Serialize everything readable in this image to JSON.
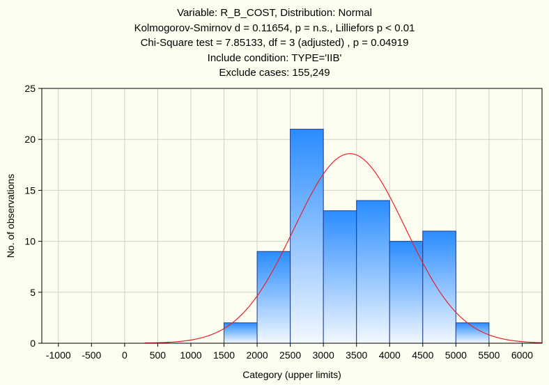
{
  "chart_data": {
    "type": "bar",
    "title_lines": [
      "Variable: R_B_COST, Distribution: Normal",
      "Kolmogorov-Smirnov d = 0.11654, p = n.s., Lilliefors p < 0.01",
      "Chi-Square test = 7.85133, df = 3 (adjusted) , p = 0.04919",
      "Include condition: TYPE='IIB'",
      "Exclude cases: 155,249"
    ],
    "xlabel": "Category (upper limits)",
    "ylabel": "No. of observations",
    "xlim": [
      -1250,
      6300
    ],
    "ylim": [
      0,
      25
    ],
    "x_ticks": [
      -1000,
      -500,
      0,
      500,
      1000,
      1500,
      2000,
      2500,
      3000,
      3500,
      4000,
      4500,
      5000,
      5500,
      6000
    ],
    "y_ticks": [
      0,
      5,
      10,
      15,
      20,
      25
    ],
    "bins": [
      {
        "lower": 1500,
        "upper": 2000,
        "count": 2
      },
      {
        "lower": 2000,
        "upper": 2500,
        "count": 9
      },
      {
        "lower": 2500,
        "upper": 3000,
        "count": 21
      },
      {
        "lower": 3000,
        "upper": 3500,
        "count": 13
      },
      {
        "lower": 3500,
        "upper": 4000,
        "count": 14
      },
      {
        "lower": 4000,
        "upper": 4500,
        "count": 10
      },
      {
        "lower": 4500,
        "upper": 5000,
        "count": 11
      },
      {
        "lower": 5000,
        "upper": 5500,
        "count": 2
      }
    ],
    "normal_curve": {
      "mean": 3400,
      "sd": 840,
      "peak": 18.6,
      "x_start": 300,
      "x_end": 6300
    },
    "grid": true,
    "colors": {
      "background": "#fdfdf0",
      "bar_top": "#2a8cff",
      "bar_bottom": "#f2f8ff",
      "bar_edge": "#1f3d8a",
      "curve": "#e8202a",
      "grid": "#d0d0d0"
    }
  }
}
